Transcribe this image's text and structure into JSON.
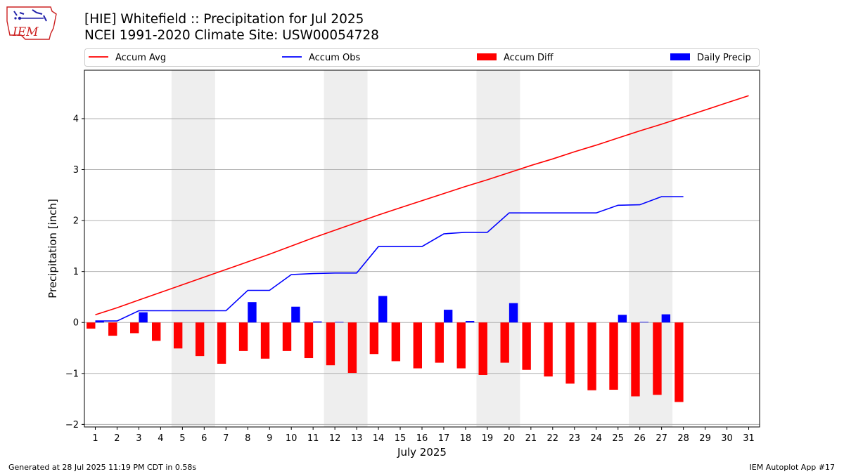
{
  "header": {
    "title": "[HIE] Whitefield :: Precipitation for Jul 2025",
    "subtitle": "NCEI 1991-2020 Climate Site: USW00054728"
  },
  "logo": {
    "text": "IEM",
    "color": "#cc2222"
  },
  "footer": {
    "generated": "Generated at 28 Jul 2025 11:19 PM CDT in 0.58s",
    "app": "IEM Autoplot App #17"
  },
  "chart_data": {
    "type": "bar",
    "title": "[HIE] Whitefield :: Precipitation for Jul 2025",
    "xlabel": "July 2025",
    "ylabel": "Precipitation [inch]",
    "xlim": [
      0.5,
      31.5
    ],
    "ylim": [
      -2.05,
      4.95
    ],
    "yticks": [
      -2,
      -1,
      0,
      1,
      2,
      3,
      4
    ],
    "ytick_labels": [
      "−2",
      "−1",
      "0",
      "1",
      "2",
      "3",
      "4"
    ],
    "x": [
      1,
      2,
      3,
      4,
      5,
      6,
      7,
      8,
      9,
      10,
      11,
      12,
      13,
      14,
      15,
      16,
      17,
      18,
      19,
      20,
      21,
      22,
      23,
      24,
      25,
      26,
      27,
      28,
      29,
      30,
      31
    ],
    "grid": "horizontal",
    "weekend_shading": [
      [
        4.5,
        6.5
      ],
      [
        11.5,
        13.5
      ],
      [
        18.5,
        20.5
      ],
      [
        25.5,
        27.5
      ]
    ],
    "legend": {
      "placement": "top",
      "entries": [
        {
          "label": "Accum Avg",
          "kind": "line",
          "color": "#ff0000"
        },
        {
          "label": "Accum Obs",
          "kind": "line",
          "color": "#0000ff"
        },
        {
          "label": "Accum Diff",
          "kind": "bar",
          "color": "#ff0000"
        },
        {
          "label": "Daily Precip",
          "kind": "bar",
          "color": "#0000ff"
        }
      ]
    },
    "series": [
      {
        "name": "Accum Avg",
        "kind": "line",
        "color": "#ff0000",
        "x": [
          1,
          2,
          3,
          4,
          5,
          6,
          7,
          8,
          9,
          10,
          11,
          12,
          13,
          14,
          15,
          16,
          17,
          18,
          19,
          20,
          21,
          22,
          23,
          24,
          25,
          26,
          27,
          28,
          29,
          30,
          31
        ],
        "values": [
          0.15,
          0.29,
          0.44,
          0.59,
          0.74,
          0.89,
          1.04,
          1.19,
          1.34,
          1.5,
          1.66,
          1.81,
          1.96,
          2.11,
          2.25,
          2.39,
          2.53,
          2.67,
          2.8,
          2.94,
          3.08,
          3.21,
          3.35,
          3.48,
          3.62,
          3.76,
          3.89,
          4.03,
          4.17,
          4.31,
          4.45
        ]
      },
      {
        "name": "Accum Obs",
        "kind": "line",
        "color": "#0000ff",
        "x": [
          1,
          2,
          3,
          4,
          5,
          6,
          7,
          8,
          9,
          10,
          11,
          12,
          13,
          14,
          15,
          16,
          17,
          18,
          19,
          20,
          21,
          22,
          23,
          24,
          25,
          26,
          27,
          28
        ],
        "values": [
          0.03,
          0.03,
          0.23,
          0.23,
          0.23,
          0.23,
          0.23,
          0.63,
          0.63,
          0.94,
          0.96,
          0.97,
          0.97,
          1.49,
          1.49,
          1.49,
          1.74,
          1.77,
          1.77,
          2.15,
          2.15,
          2.15,
          2.15,
          2.15,
          2.3,
          2.31,
          2.47,
          2.47
        ]
      },
      {
        "name": "Accum Diff",
        "kind": "bar",
        "color": "#ff0000",
        "x": [
          1,
          2,
          3,
          4,
          5,
          6,
          7,
          8,
          9,
          10,
          11,
          12,
          13,
          14,
          15,
          16,
          17,
          18,
          19,
          20,
          21,
          22,
          23,
          24,
          25,
          26,
          27,
          28
        ],
        "values": [
          -0.12,
          -0.26,
          -0.21,
          -0.36,
          -0.51,
          -0.66,
          -0.81,
          -0.56,
          -0.71,
          -0.56,
          -0.7,
          -0.84,
          -0.99,
          -0.62,
          -0.76,
          -0.9,
          -0.79,
          -0.9,
          -1.03,
          -0.79,
          -0.93,
          -1.06,
          -1.2,
          -1.33,
          -1.32,
          -1.45,
          -1.42,
          -1.56
        ]
      },
      {
        "name": "Daily Precip",
        "kind": "bar",
        "color": "#0000ff",
        "x": [
          1,
          2,
          3,
          4,
          5,
          6,
          7,
          8,
          9,
          10,
          11,
          12,
          13,
          14,
          15,
          16,
          17,
          18,
          19,
          20,
          21,
          22,
          23,
          24,
          25,
          26,
          27,
          28
        ],
        "values": [
          0.03,
          0.0,
          0.2,
          0.0,
          0.0,
          0.0,
          0.0,
          0.4,
          0.0,
          0.31,
          0.02,
          0.01,
          0.0,
          0.52,
          0.0,
          0.0,
          0.25,
          0.03,
          0.0,
          0.38,
          0.0,
          0.0,
          0.0,
          0.0,
          0.15,
          0.01,
          0.16,
          0.0
        ]
      }
    ]
  }
}
